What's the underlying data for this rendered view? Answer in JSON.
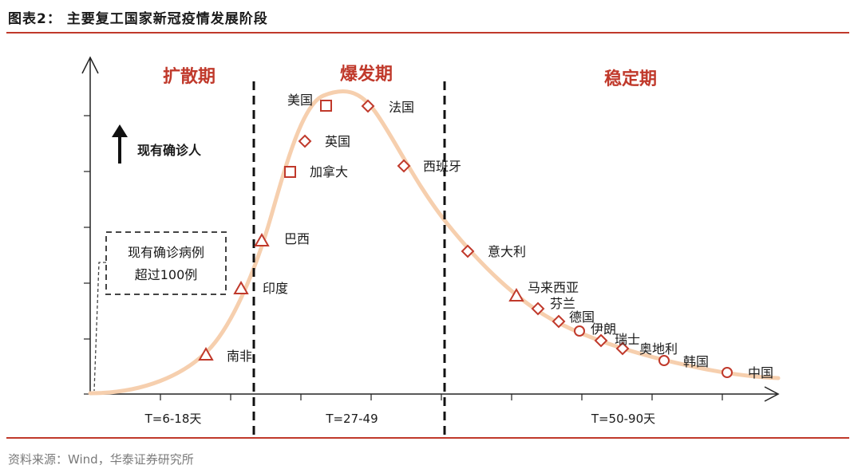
{
  "title": "图表2： 主要复工国家新冠疫情发展阶段",
  "source": "资料来源：Wind，华泰证券研究所",
  "colors": {
    "accent": "#c0392b",
    "curve": "#f6cfae",
    "marker": "#c0392b"
  },
  "y_axis_label": "现有确诊人",
  "threshold_box": {
    "line1": "现有确诊病例",
    "line2": "超过100例"
  },
  "phases": [
    {
      "name": "扩散期",
      "range": "T=6-18天"
    },
    {
      "name": "爆发期",
      "range": "T=27-49"
    },
    {
      "name": "稳定期",
      "range": "T=50-90天"
    }
  ],
  "countries": [
    {
      "name": "南非",
      "marker": "triangle"
    },
    {
      "name": "印度",
      "marker": "triangle"
    },
    {
      "name": "巴西",
      "marker": "triangle"
    },
    {
      "name": "加拿大",
      "marker": "square"
    },
    {
      "name": "英国",
      "marker": "diamond"
    },
    {
      "name": "美国",
      "marker": "square"
    },
    {
      "name": "法国",
      "marker": "diamond"
    },
    {
      "name": "西班牙",
      "marker": "diamond"
    },
    {
      "name": "意大利",
      "marker": "diamond"
    },
    {
      "name": "马来西亚",
      "marker": "triangle"
    },
    {
      "name": "芬兰",
      "marker": "diamond"
    },
    {
      "name": "德国",
      "marker": "diamond"
    },
    {
      "name": "伊朗",
      "marker": "circle"
    },
    {
      "name": "瑞士",
      "marker": "diamond"
    },
    {
      "name": "奥地利",
      "marker": "diamond"
    },
    {
      "name": "韩国",
      "marker": "circle"
    },
    {
      "name": "中国",
      "marker": "circle"
    }
  ]
}
